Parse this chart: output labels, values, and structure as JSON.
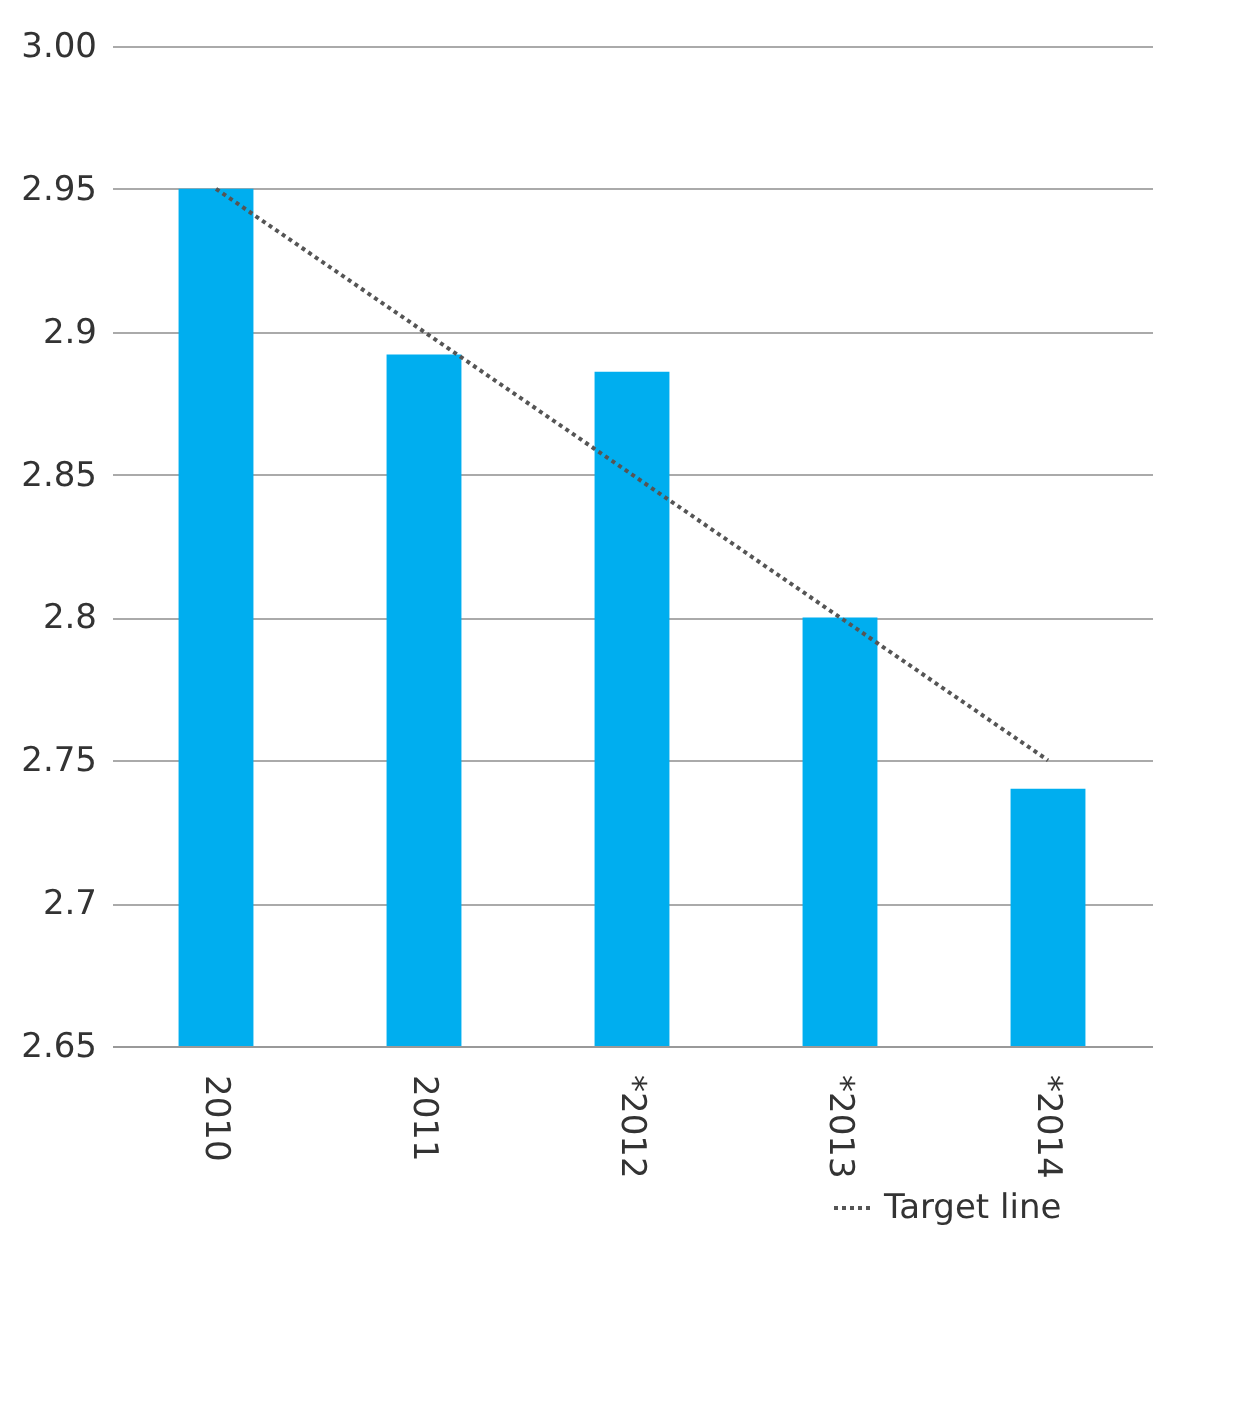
{
  "chart_data": {
    "type": "bar",
    "categories": [
      "2010",
      "2011",
      "*2012",
      "*2013",
      "*2014"
    ],
    "series": [
      {
        "color": "#00aeef",
        "values": [
          2.95,
          2.892,
          2.886,
          2.8,
          2.74
        ]
      },
      {
        "name": "Target line",
        "type": "line",
        "color": "#555555",
        "line_style": "dotted",
        "values": [
          2.95,
          2.9,
          2.85,
          2.8,
          2.75
        ]
      }
    ],
    "ylim": [
      2.65,
      3.0
    ],
    "yticks": [
      {
        "value": 3.0,
        "label": "3.00"
      },
      2.95,
      2.9,
      2.85,
      2.8,
      2.75,
      2.7,
      2.65
    ],
    "grid": "y",
    "legend": "bottom right"
  }
}
